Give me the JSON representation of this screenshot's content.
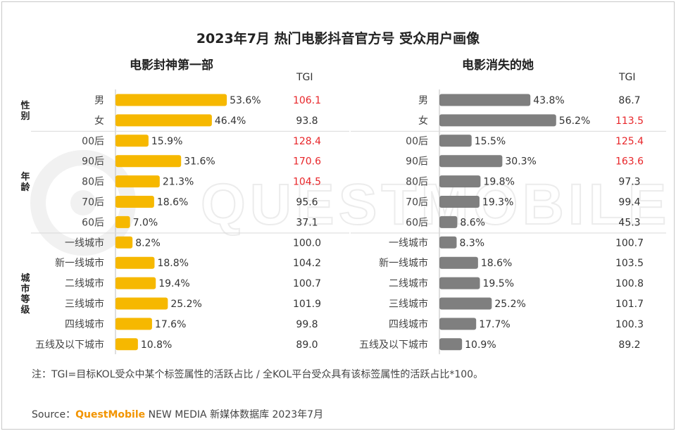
{
  "title": "2023年7月 热门电影抖音官方号 受众用户画像",
  "watermark": "QUESTMOBILE",
  "tgi_header": "TGI",
  "groups": [
    {
      "name": "性别",
      "labels": [
        "男",
        "女"
      ]
    },
    {
      "name": "年龄",
      "labels": [
        "00后",
        "90后",
        "80后",
        "70后",
        "60后"
      ]
    },
    {
      "name": "城市等级",
      "labels": [
        "一线城市",
        "新一线城市",
        "二线城市",
        "三线城市",
        "四线城市",
        "五线及以下城市"
      ]
    }
  ],
  "chart_data": [
    {
      "type": "bar",
      "title": "电影封神第一部",
      "color": "#f6b800",
      "categories": [
        "男",
        "女",
        "00后",
        "90后",
        "80后",
        "70后",
        "60后",
        "一线城市",
        "新一线城市",
        "二线城市",
        "三线城市",
        "四线城市",
        "五线及以下城市"
      ],
      "values": [
        53.6,
        46.4,
        15.9,
        31.6,
        21.3,
        18.6,
        7.0,
        8.2,
        18.8,
        19.4,
        25.2,
        17.6,
        10.8
      ],
      "value_labels": [
        "53.6%",
        "46.4%",
        "15.9%",
        "31.6%",
        "21.3%",
        "18.6%",
        "7.0%",
        "8.2%",
        "18.8%",
        "19.4%",
        "25.2%",
        "17.6%",
        "10.8%"
      ],
      "tgi": [
        "106.1",
        "93.8",
        "128.4",
        "170.6",
        "104.5",
        "95.6",
        "37.1",
        "100.0",
        "104.2",
        "100.7",
        "101.9",
        "99.8",
        "89.0"
      ],
      "tgi_highlight": [
        true,
        false,
        true,
        true,
        true,
        false,
        false,
        false,
        false,
        false,
        false,
        false,
        false
      ],
      "unit": "%"
    },
    {
      "type": "bar",
      "title": "电影消失的她",
      "color": "#7f7f7f",
      "categories": [
        "男",
        "女",
        "00后",
        "90后",
        "80后",
        "70后",
        "60后",
        "一线城市",
        "新一线城市",
        "二线城市",
        "三线城市",
        "四线城市",
        "五线及以下城市"
      ],
      "values": [
        43.8,
        56.2,
        15.5,
        30.3,
        19.8,
        19.3,
        8.6,
        8.3,
        18.6,
        19.5,
        25.2,
        17.7,
        10.9
      ],
      "value_labels": [
        "43.8%",
        "56.2%",
        "15.5%",
        "30.3%",
        "19.8%",
        "19.3%",
        "8.6%",
        "8.3%",
        "18.6%",
        "19.5%",
        "25.2%",
        "17.7%",
        "10.9%"
      ],
      "tgi": [
        "86.7",
        "113.5",
        "125.4",
        "163.6",
        "97.3",
        "99.4",
        "45.3",
        "100.7",
        "103.5",
        "100.8",
        "101.7",
        "100.3",
        "89.2"
      ],
      "tgi_highlight": [
        false,
        true,
        true,
        true,
        false,
        false,
        false,
        false,
        false,
        false,
        false,
        false,
        false
      ],
      "unit": "%"
    }
  ],
  "colors": {
    "highlight": "#e8262a",
    "normal": "#333333",
    "divider": "#d9d9d9"
  },
  "note": "注：TGI=目标KOL受众中某个标签属性的活跃占比 / 全KOL平台受众具有该标签属性的活跃占比*100。",
  "source": {
    "prefix": "Source：",
    "brand": "QuestMobile",
    "rest": " NEW MEDIA 新媒体数据库 2023年7月"
  }
}
